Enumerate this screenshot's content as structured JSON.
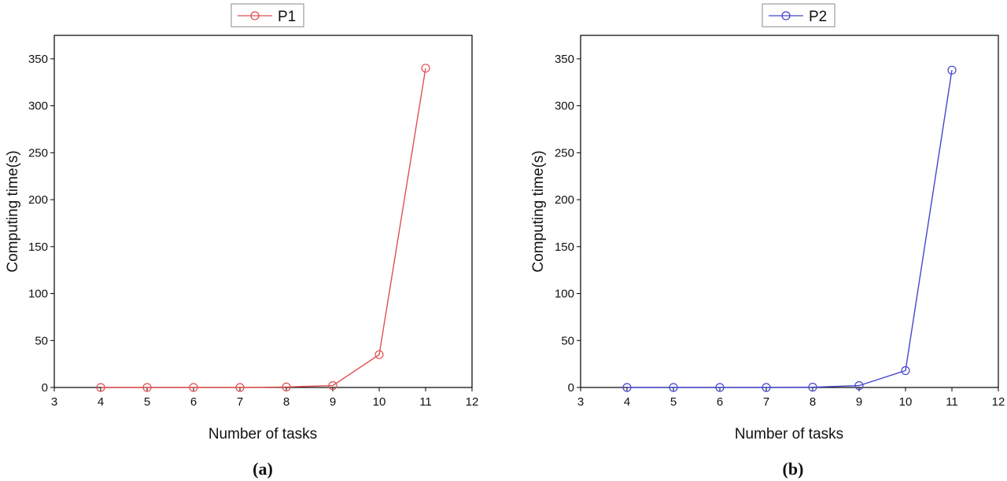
{
  "chart_data": [
    {
      "type": "line",
      "panel_label": "(a)",
      "xlabel": "Number of tasks",
      "ylabel": "Computing time(s)",
      "xlim": [
        3,
        12
      ],
      "ylim": [
        0,
        375
      ],
      "xticks": [
        3,
        4,
        5,
        6,
        7,
        8,
        9,
        10,
        11,
        12
      ],
      "yticks": [
        0,
        50,
        100,
        150,
        200,
        250,
        300,
        350
      ],
      "grid": false,
      "legend_position": "top-center",
      "series": [
        {
          "name": "P1",
          "color": "#e05050",
          "marker": "open-circle",
          "x": [
            4,
            5,
            6,
            7,
            8,
            9,
            10,
            11
          ],
          "y": [
            0,
            0,
            0,
            0,
            0.5,
            2,
            35,
            340
          ]
        }
      ]
    },
    {
      "type": "line",
      "panel_label": "(b)",
      "xlabel": "Number of tasks",
      "ylabel": "Computing time(s)",
      "xlim": [
        3,
        12
      ],
      "ylim": [
        0,
        375
      ],
      "xticks": [
        3,
        4,
        5,
        6,
        7,
        8,
        9,
        10,
        11,
        12
      ],
      "yticks": [
        0,
        50,
        100,
        150,
        200,
        250,
        300,
        350
      ],
      "grid": false,
      "legend_position": "top-center",
      "series": [
        {
          "name": "P2",
          "color": "#4646cc",
          "marker": "open-circle",
          "x": [
            4,
            5,
            6,
            7,
            8,
            9,
            10,
            11
          ],
          "y": [
            0,
            0,
            0,
            0,
            0.3,
            2,
            18,
            338
          ]
        }
      ]
    }
  ]
}
